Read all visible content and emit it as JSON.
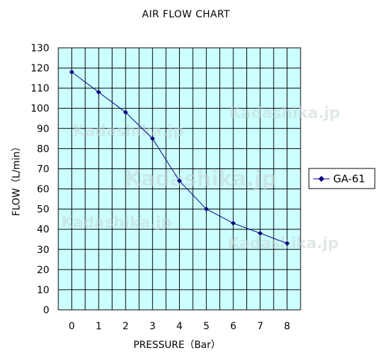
{
  "chart_data": {
    "type": "line",
    "title": "AIR FLOW CHART",
    "xlabel": "PRESSURE（Bar）",
    "ylabel": "FLOW（L/min）",
    "x": [
      0,
      1,
      2,
      3,
      4,
      5,
      6,
      7,
      8
    ],
    "xticks": [
      "0",
      "1",
      "2",
      "3",
      "4",
      "5",
      "6",
      "7",
      "8"
    ],
    "xlim": [
      -0.5,
      8.5
    ],
    "ylim": [
      0,
      130
    ],
    "yticks": [
      "0",
      "10",
      "20",
      "30",
      "40",
      "50",
      "60",
      "70",
      "80",
      "90",
      "100",
      "110",
      "120",
      "130"
    ],
    "grid": true,
    "legend_position": "right",
    "plot_background": "#ccffff",
    "series": [
      {
        "name": "GA-61",
        "color": "#000080",
        "values": [
          118,
          108,
          98,
          85,
          64,
          50,
          43,
          38,
          33
        ]
      }
    ]
  },
  "watermark": "Kadashika.jp"
}
